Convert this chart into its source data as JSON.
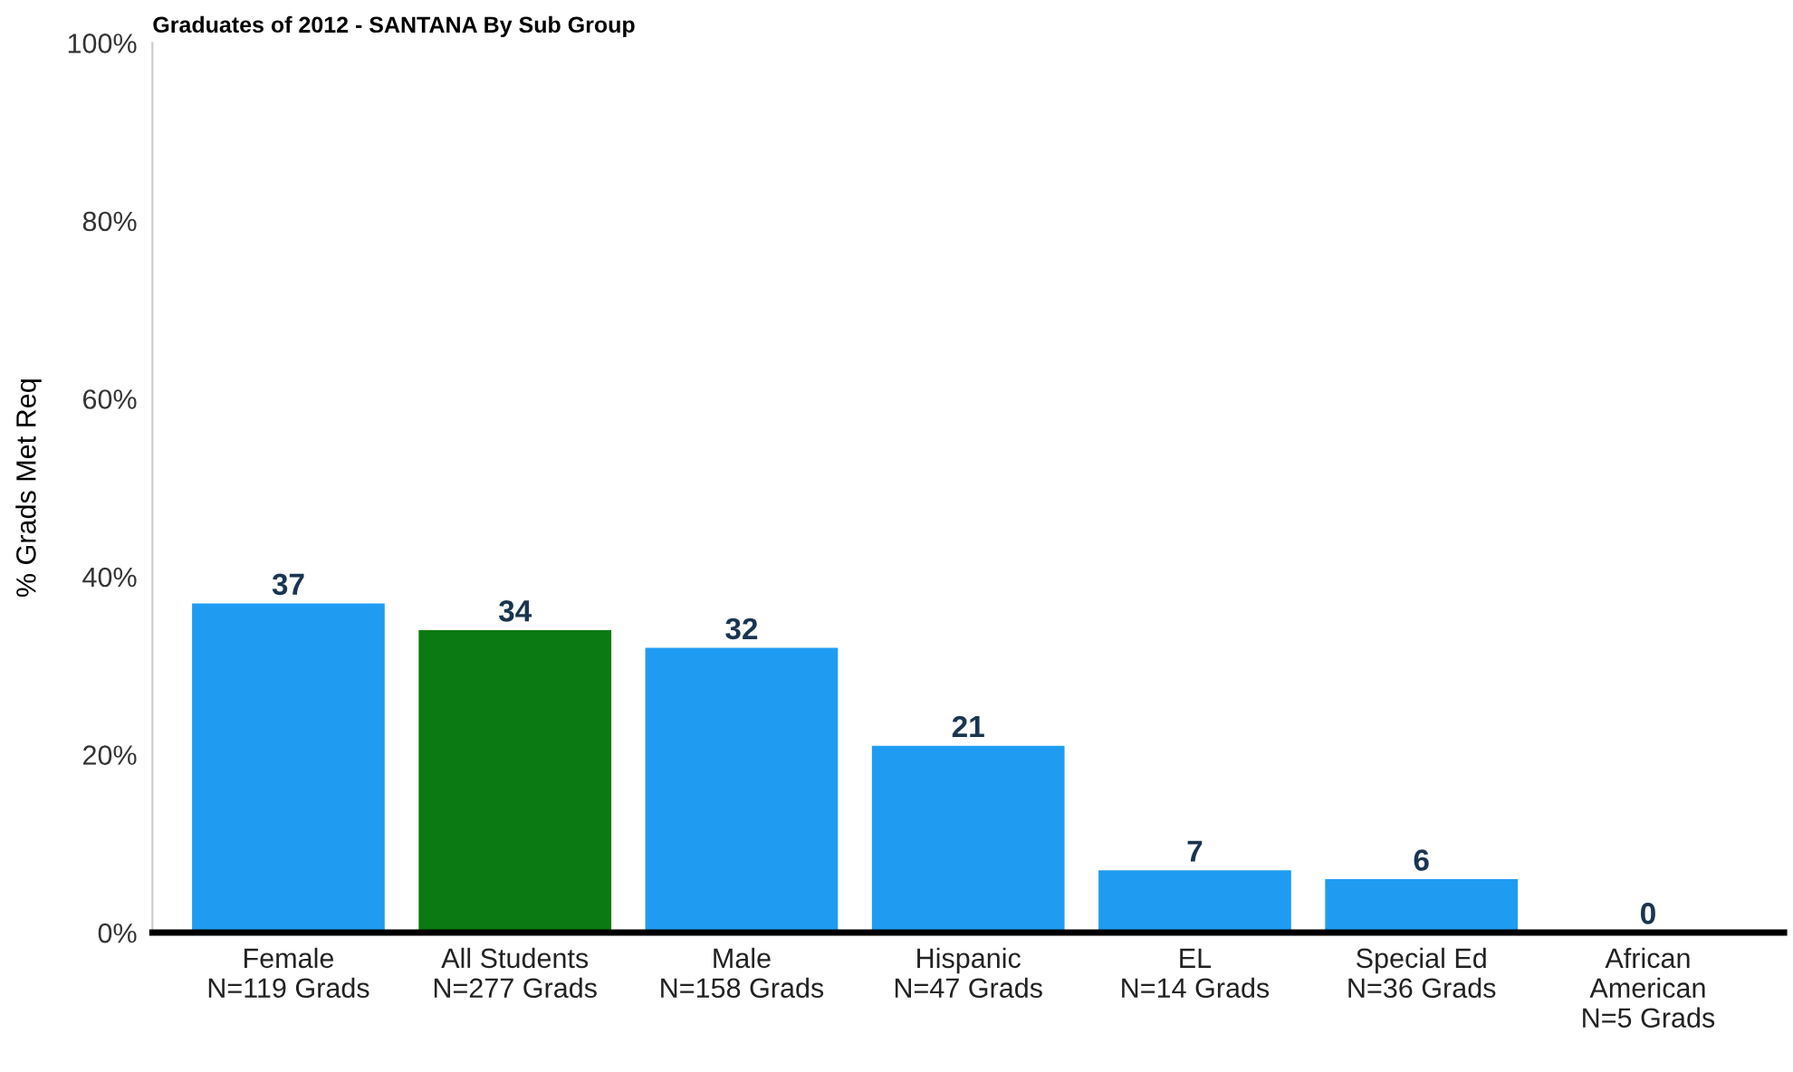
{
  "chart_data": {
    "type": "bar",
    "title": "Graduates of 2012 - SANTANA By Sub Group",
    "ylabel": "% Grads Met Req",
    "categories": [
      "Female\nN=119 Grads",
      "All Students\nN=277 Grads",
      "Male\nN=158 Grads",
      "Hispanic\nN=47 Grads",
      "EL\nN=14 Grads",
      "Special Ed\nN=36 Grads",
      "African\nAmerican\nN=5 Grads"
    ],
    "values": [
      37,
      34,
      32,
      21,
      7,
      6,
      0
    ],
    "colors": [
      "#1f9cf2",
      "#0b7a12",
      "#1f9cf2",
      "#1f9cf2",
      "#1f9cf2",
      "#1f9cf2",
      "#1f9cf2"
    ],
    "ylim": [
      0,
      100
    ],
    "yticks": [
      {
        "value": 0,
        "label": "0%"
      },
      {
        "value": 20,
        "label": "20%"
      },
      {
        "value": 40,
        "label": "40%"
      },
      {
        "value": 60,
        "label": "60%"
      },
      {
        "value": 80,
        "label": "80%"
      },
      {
        "value": 100,
        "label": "100%"
      }
    ],
    "data_labels": true,
    "grid": false,
    "legend": false
  }
}
